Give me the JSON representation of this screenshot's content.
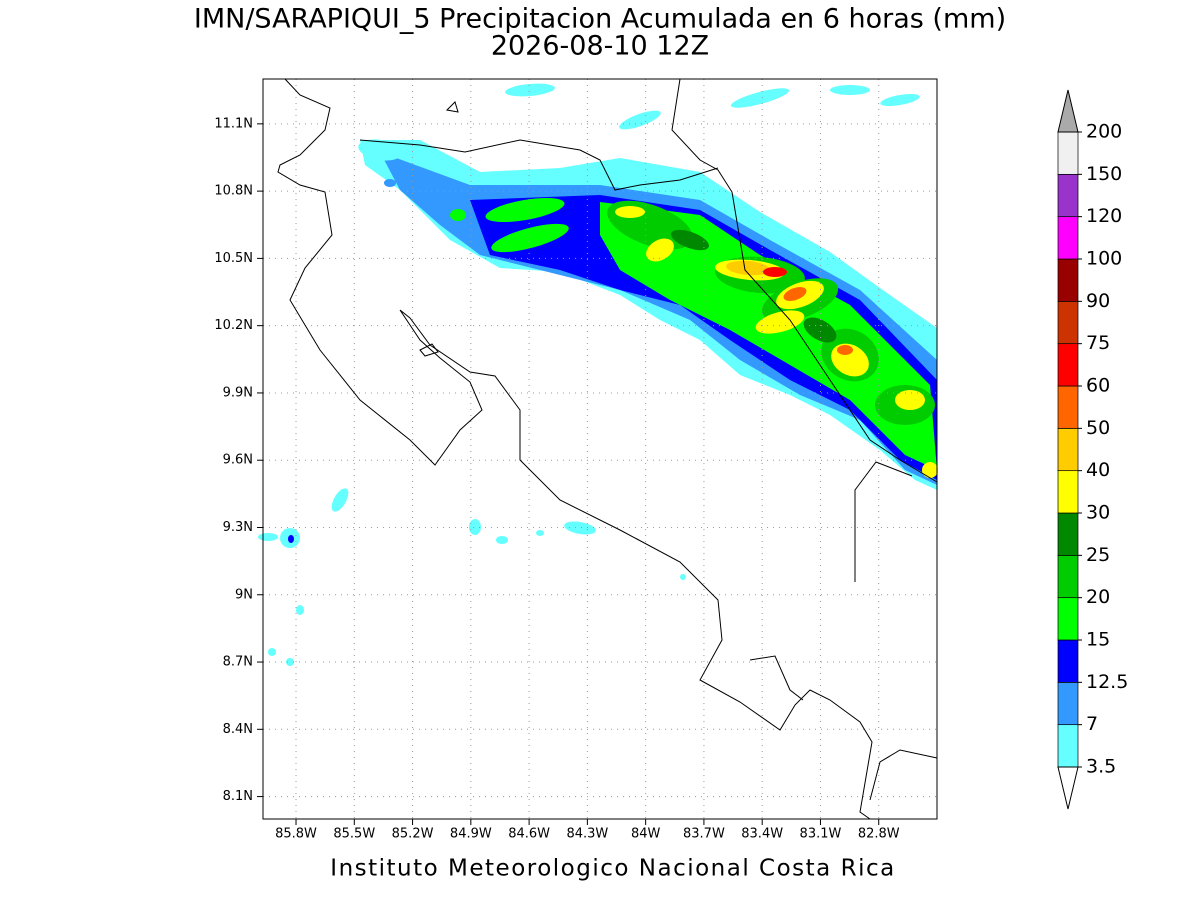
{
  "title": "IMN/SARAPIQUI_5 Precipitacion Acumulada en 6 horas (mm)",
  "subtitle": "2026-08-10 12Z",
  "footer": "Instituto Meteorologico Nacional Costa Rica",
  "map": {
    "xlim": [
      -85.97,
      -82.5
    ],
    "ylim": [
      8.0,
      11.3
    ],
    "grid": true,
    "xticks": [
      {
        "value": -85.8,
        "label": "85.8W"
      },
      {
        "value": -85.5,
        "label": "85.5W"
      },
      {
        "value": -85.2,
        "label": "85.2W"
      },
      {
        "value": -84.9,
        "label": "84.9W"
      },
      {
        "value": -84.6,
        "label": "84.6W"
      },
      {
        "value": -84.3,
        "label": "84.3W"
      },
      {
        "value": -84,
        "label": "84W"
      },
      {
        "value": -83.7,
        "label": "83.7W"
      },
      {
        "value": -83.4,
        "label": "83.4W"
      },
      {
        "value": -83.1,
        "label": "83.1W"
      },
      {
        "value": -82.8,
        "label": "82.8W"
      }
    ],
    "yticks": [
      {
        "value": 8.1,
        "label": "8.1N"
      },
      {
        "value": 8.4,
        "label": "8.4N"
      },
      {
        "value": 8.7,
        "label": "8.7N"
      },
      {
        "value": 9,
        "label": "9N"
      },
      {
        "value": 9.3,
        "label": "9.3N"
      },
      {
        "value": 9.6,
        "label": "9.6N"
      },
      {
        "value": 9.9,
        "label": "9.9N"
      },
      {
        "value": 10.2,
        "label": "10.2N"
      },
      {
        "value": 10.5,
        "label": "10.5N"
      },
      {
        "value": 10.8,
        "label": "10.8N"
      },
      {
        "value": 11.1,
        "label": "11.1N"
      }
    ]
  },
  "colorbar": {
    "levels": [
      3.5,
      7,
      12.5,
      15,
      20,
      25,
      30,
      40,
      50,
      60,
      75,
      90,
      100,
      120,
      150,
      200
    ],
    "colors": [
      "#66ffff",
      "#3399ff",
      "#0000ff",
      "#00ff00",
      "#00cc00",
      "#008800",
      "#ffff00",
      "#ffcc00",
      "#ff6600",
      "#ff0000",
      "#cc3300",
      "#990000",
      "#ff00ff",
      "#9933cc",
      "#f0f0f0"
    ],
    "under_color": "#ffffff",
    "over_color": "#aaaaaa"
  }
}
